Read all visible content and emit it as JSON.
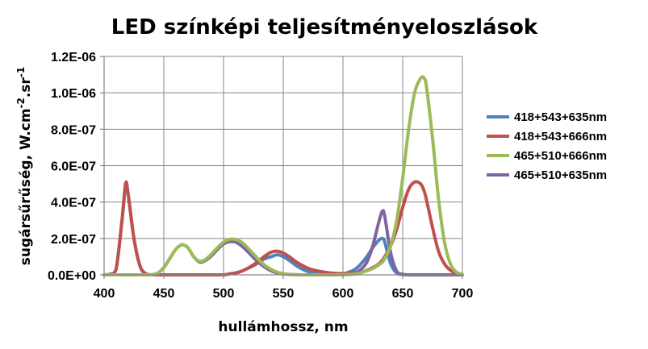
{
  "chart_data": {
    "type": "line",
    "title": "LED színképi teljesítményeloszlások",
    "xlabel": "hullámhossz, nm",
    "ylabel": "sugársűrűség, W.cm",
    "ylabel_sup1": "-2",
    "ylabel_mid": ".sr",
    "ylabel_sup2": "-1",
    "xlim": [
      400,
      700
    ],
    "ylim": [
      0,
      1.2e-06
    ],
    "xticks": [
      "400",
      "450",
      "500",
      "550",
      "600",
      "650",
      "700"
    ],
    "xtick_values": [
      400,
      450,
      500,
      550,
      600,
      650,
      700
    ],
    "yticks": [
      "0.0E+00",
      "2.0E-07",
      "4.0E-07",
      "6.0E-07",
      "8.0E-07",
      "1.0E-06",
      "1.2E-06"
    ],
    "ytick_values": [
      0,
      2e-07,
      4e-07,
      6e-07,
      8e-07,
      1e-06,
      1.2e-06
    ],
    "grid": true,
    "legend_position": "right",
    "x": [
      400,
      405,
      410,
      415,
      418,
      420,
      425,
      430,
      435,
      440,
      445,
      450,
      455,
      460,
      465,
      470,
      475,
      480,
      485,
      490,
      495,
      500,
      505,
      510,
      515,
      520,
      525,
      530,
      535,
      540,
      545,
      550,
      555,
      560,
      565,
      570,
      575,
      580,
      585,
      590,
      595,
      600,
      605,
      610,
      615,
      620,
      625,
      630,
      633,
      635,
      640,
      645,
      650,
      655,
      660,
      665,
      668,
      670,
      675,
      680,
      685,
      690,
      695,
      700
    ],
    "series": [
      {
        "name": "418+543+635nm",
        "color": "#4F81BD",
        "values": [
          0,
          3e-09,
          3e-08,
          3e-07,
          5e-07,
          4.5e-07,
          2e-07,
          5e-08,
          5e-09,
          0,
          0,
          0,
          0,
          0,
          0,
          0,
          0,
          0,
          0,
          0,
          0,
          0,
          5e-09,
          1e-08,
          2e-08,
          3.5e-08,
          5e-08,
          7e-08,
          9e-08,
          1e-07,
          1.1e-07,
          1e-07,
          8e-08,
          5.5e-08,
          3.5e-08,
          2e-08,
          1e-08,
          5e-09,
          2e-09,
          1e-09,
          2e-09,
          5e-09,
          1.5e-08,
          3e-08,
          6e-08,
          1e-07,
          1.5e-07,
          1.9e-07,
          2e-07,
          1.8e-07,
          6e-08,
          1e-08,
          2e-09,
          0,
          0,
          0,
          0,
          0,
          0,
          0,
          0,
          0,
          0,
          0
        ]
      },
      {
        "name": "418+543+666nm",
        "color": "#C0504D",
        "values": [
          0,
          3e-09,
          3e-08,
          3e-07,
          5e-07,
          4.5e-07,
          2e-07,
          5e-08,
          5e-09,
          0,
          0,
          0,
          0,
          0,
          0,
          0,
          0,
          0,
          0,
          0,
          0,
          0,
          5e-09,
          1e-08,
          2e-08,
          3.5e-08,
          5.5e-08,
          8e-08,
          1.05e-07,
          1.25e-07,
          1.3e-07,
          1.2e-07,
          1e-07,
          7.5e-08,
          5.5e-08,
          3.8e-08,
          2.7e-08,
          2e-08,
          1.4e-08,
          1e-08,
          8e-09,
          7e-09,
          8e-09,
          1e-08,
          1.4e-08,
          2.5e-08,
          4e-08,
          6e-08,
          8e-08,
          1e-07,
          1.6e-07,
          2.5e-07,
          3.7e-07,
          4.7e-07,
          5.1e-07,
          5e-07,
          4.6e-07,
          4.1e-07,
          2.6e-07,
          1.3e-07,
          6e-08,
          2.5e-08,
          8e-09,
          2e-09
        ]
      },
      {
        "name": "465+510+666nm",
        "color": "#9BBB59",
        "values": [
          0,
          0,
          0,
          0,
          0,
          0,
          0,
          0,
          0,
          0,
          1e-08,
          4e-08,
          9e-08,
          1.4e-07,
          1.65e-07,
          1.5e-07,
          1e-07,
          7.5e-08,
          8.5e-08,
          1.15e-07,
          1.5e-07,
          1.8e-07,
          1.95e-07,
          1.95e-07,
          1.8e-07,
          1.5e-07,
          1.15e-07,
          8e-08,
          5e-08,
          3e-08,
          1.5e-08,
          7e-09,
          3e-09,
          1e-09,
          0,
          0,
          0,
          0,
          0,
          0,
          0,
          0,
          2e-09,
          5e-09,
          1.2e-08,
          2.2e-08,
          3.5e-08,
          5.5e-08,
          7e-08,
          9e-08,
          1.6e-07,
          3e-07,
          5.3e-07,
          8e-07,
          1e-06,
          1.08e-06,
          1.08e-06,
          1.03e-06,
          7.5e-07,
          4.2e-07,
          1.8e-07,
          6e-08,
          1.5e-08,
          3e-09
        ]
      },
      {
        "name": "465+510+635nm",
        "color": "#8064A2",
        "values": [
          0,
          0,
          0,
          0,
          0,
          0,
          0,
          0,
          0,
          0,
          1e-08,
          4e-08,
          9e-08,
          1.4e-07,
          1.65e-07,
          1.5e-07,
          1e-07,
          7e-08,
          8e-08,
          1.05e-07,
          1.4e-07,
          1.7e-07,
          1.82e-07,
          1.8e-07,
          1.6e-07,
          1.3e-07,
          9.5e-08,
          6.5e-08,
          4e-08,
          2.2e-08,
          1e-08,
          5e-09,
          2e-09,
          1e-09,
          0,
          0,
          0,
          0,
          0,
          0,
          1e-09,
          2e-09,
          5e-09,
          1e-08,
          3e-08,
          7e-08,
          1.6e-07,
          2.9e-07,
          3.5e-07,
          3.2e-07,
          1.2e-07,
          2e-08,
          3e-09,
          0,
          0,
          0,
          0,
          0,
          0,
          0,
          0,
          0,
          0,
          0
        ]
      }
    ]
  }
}
